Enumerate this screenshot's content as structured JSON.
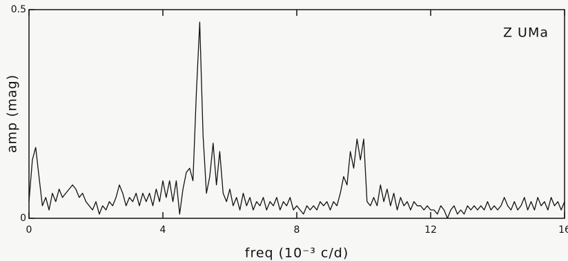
{
  "chart_data": {
    "type": "line",
    "annotation": "Z UMa",
    "xlabel": "freq (10⁻³ c/d)",
    "ylabel": "amp (mag)",
    "xlim": [
      0,
      16
    ],
    "xticks": [
      0,
      4,
      8,
      12,
      16
    ],
    "ylim": [
      0,
      0.5
    ],
    "yticks": [
      0,
      0.5
    ],
    "color": "#111111",
    "x": [
      0,
      0.1,
      0.2,
      0.3,
      0.4,
      0.5,
      0.6,
      0.7,
      0.8,
      0.9,
      1,
      1.1,
      1.2,
      1.3,
      1.4,
      1.5,
      1.6,
      1.7,
      1.8,
      1.9,
      2,
      2.1,
      2.2,
      2.3,
      2.4,
      2.5,
      2.6,
      2.7,
      2.8,
      2.9,
      3,
      3.1,
      3.2,
      3.3,
      3.4,
      3.5,
      3.6,
      3.7,
      3.8,
      3.9,
      4,
      4.1,
      4.2,
      4.3,
      4.4,
      4.5,
      4.6,
      4.7,
      4.8,
      4.9,
      5,
      5.1,
      5.2,
      5.3,
      5.4,
      5.5,
      5.6,
      5.7,
      5.8,
      5.9,
      6,
      6.1,
      6.2,
      6.3,
      6.4,
      6.5,
      6.6,
      6.7,
      6.8,
      6.9,
      7,
      7.1,
      7.2,
      7.3,
      7.4,
      7.5,
      7.6,
      7.7,
      7.8,
      7.9,
      8,
      8.1,
      8.2,
      8.3,
      8.4,
      8.5,
      8.6,
      8.7,
      8.8,
      8.9,
      9,
      9.1,
      9.2,
      9.3,
      9.4,
      9.5,
      9.6,
      9.7,
      9.8,
      9.9,
      10,
      10.1,
      10.2,
      10.3,
      10.4,
      10.5,
      10.6,
      10.7,
      10.8,
      10.9,
      11,
      11.1,
      11.2,
      11.3,
      11.4,
      11.5,
      11.6,
      11.7,
      11.8,
      11.9,
      12,
      12.1,
      12.2,
      12.3,
      12.4,
      12.5,
      12.6,
      12.7,
      12.8,
      12.9,
      13,
      13.1,
      13.2,
      13.3,
      13.4,
      13.5,
      13.6,
      13.7,
      13.8,
      13.9,
      14,
      14.1,
      14.2,
      14.3,
      14.4,
      14.5,
      14.6,
      14.7,
      14.8,
      14.9,
      15,
      15.1,
      15.2,
      15.3,
      15.4,
      15.5,
      15.6,
      15.7,
      15.8,
      15.9,
      16
    ],
    "values": [
      0.04,
      0.14,
      0.17,
      0.1,
      0.03,
      0.05,
      0.02,
      0.06,
      0.04,
      0.07,
      0.05,
      0.06,
      0.07,
      0.08,
      0.07,
      0.05,
      0.06,
      0.04,
      0.03,
      0.02,
      0.04,
      0.01,
      0.03,
      0.02,
      0.04,
      0.03,
      0.05,
      0.08,
      0.06,
      0.03,
      0.05,
      0.04,
      0.06,
      0.03,
      0.06,
      0.04,
      0.06,
      0.03,
      0.07,
      0.04,
      0.09,
      0.05,
      0.09,
      0.04,
      0.09,
      0.01,
      0.07,
      0.11,
      0.12,
      0.09,
      0.3,
      0.47,
      0.2,
      0.06,
      0.1,
      0.18,
      0.08,
      0.16,
      0.06,
      0.04,
      0.07,
      0.03,
      0.05,
      0.02,
      0.06,
      0.03,
      0.05,
      0.02,
      0.04,
      0.03,
      0.05,
      0.02,
      0.04,
      0.03,
      0.05,
      0.02,
      0.04,
      0.03,
      0.05,
      0.02,
      0.03,
      0.02,
      0.01,
      0.03,
      0.02,
      0.03,
      0.02,
      0.04,
      0.03,
      0.04,
      0.02,
      0.04,
      0.03,
      0.06,
      0.1,
      0.08,
      0.16,
      0.12,
      0.19,
      0.14,
      0.19,
      0.04,
      0.03,
      0.05,
      0.03,
      0.08,
      0.04,
      0.07,
      0.03,
      0.06,
      0.02,
      0.05,
      0.03,
      0.04,
      0.02,
      0.04,
      0.03,
      0.03,
      0.02,
      0.03,
      0.02,
      0.02,
      0.01,
      0.03,
      0.02,
      0,
      0.02,
      0.03,
      0.01,
      0.02,
      0.01,
      0.03,
      0.02,
      0.03,
      0.02,
      0.03,
      0.02,
      0.04,
      0.02,
      0.03,
      0.02,
      0.03,
      0.05,
      0.03,
      0.02,
      0.04,
      0.02,
      0.03,
      0.05,
      0.02,
      0.04,
      0.02,
      0.05,
      0.03,
      0.04,
      0.02,
      0.05,
      0.03,
      0.04,
      0.02,
      0.04
    ]
  }
}
